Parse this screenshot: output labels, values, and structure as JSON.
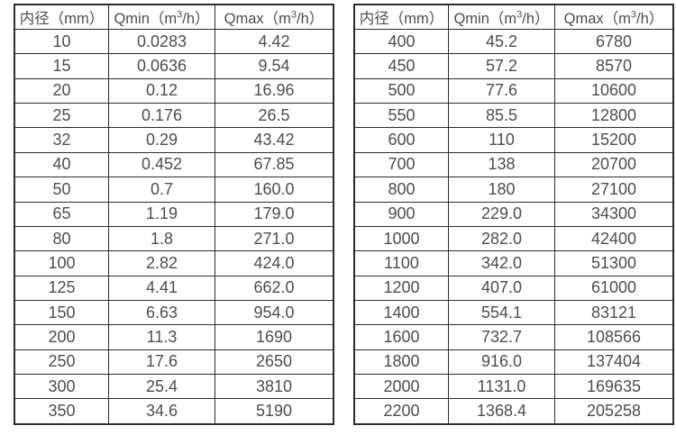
{
  "page": {
    "background_color": "#ffffff",
    "text_color": "#4d4d4d",
    "border_color": "#2b2b2b",
    "description": "flow-meter diameter vs minimum and maximum flow rate tables"
  },
  "tables": [
    {
      "name": "flow-table-small-diameters",
      "headers": [
        "内径（mm）",
        "Qmin（m³/h）",
        "Qmax（m³/h）"
      ],
      "rows": [
        [
          "10",
          "0.0283",
          "4.42"
        ],
        [
          "15",
          "0.0636",
          "9.54"
        ],
        [
          "20",
          "0.12",
          "16.96"
        ],
        [
          "25",
          "0.176",
          "26.5"
        ],
        [
          "32",
          "0.29",
          "43.42"
        ],
        [
          "40",
          "0.452",
          "67.85"
        ],
        [
          "50",
          "0.7",
          "160.0"
        ],
        [
          "65",
          "1.19",
          "179.0"
        ],
        [
          "80",
          "1.8",
          "271.0"
        ],
        [
          "100",
          "2.82",
          "424.0"
        ],
        [
          "125",
          "4.41",
          "662.0"
        ],
        [
          "150",
          "6.63",
          "954.0"
        ],
        [
          "200",
          "11.3",
          "1690"
        ],
        [
          "250",
          "17.6",
          "2650"
        ],
        [
          "300",
          "25.4",
          "3810"
        ],
        [
          "350",
          "34.6",
          "5190"
        ]
      ]
    },
    {
      "name": "flow-table-large-diameters",
      "headers": [
        "内径（mm）",
        "Qmin（m³/h）",
        "Qmax（m³/h）"
      ],
      "rows": [
        [
          "400",
          "45.2",
          "6780"
        ],
        [
          "450",
          "57.2",
          "8570"
        ],
        [
          "500",
          "77.6",
          "10600"
        ],
        [
          "550",
          "85.5",
          "12800"
        ],
        [
          "600",
          "110",
          "15200"
        ],
        [
          "700",
          "138",
          "20700"
        ],
        [
          "800",
          "180",
          "27100"
        ],
        [
          "900",
          "229.0",
          "34300"
        ],
        [
          "1000",
          "282.0",
          "42400"
        ],
        [
          "1100",
          "342.0",
          "51300"
        ],
        [
          "1200",
          "407.0",
          "61000"
        ],
        [
          "1400",
          "554.1",
          "83121"
        ],
        [
          "1600",
          "732.7",
          "108566"
        ],
        [
          "1800",
          "916.0",
          "137404"
        ],
        [
          "2000",
          "1131.0",
          "169635"
        ],
        [
          "2200",
          "1368.4",
          "205258"
        ]
      ]
    }
  ]
}
